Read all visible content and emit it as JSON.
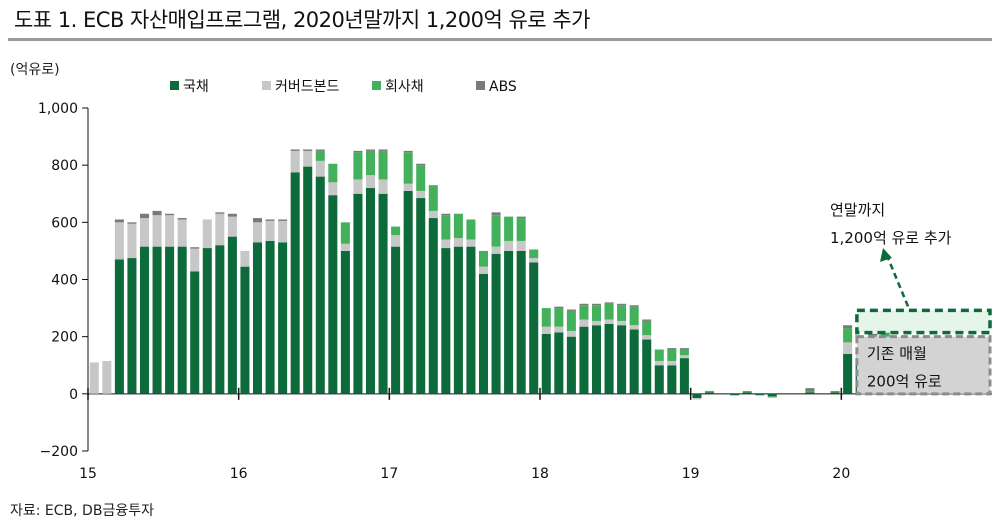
{
  "title": "도표 1. ECB 자산매입프로그램, 2020년말까지 1,200억 유로 추가",
  "source": "자료: ECB, DB금융투자",
  "chart_data": {
    "type": "bar",
    "stacked": true,
    "unit_label": "(억유로)",
    "ylim": [
      -200,
      1000
    ],
    "yticks": [
      -200,
      0,
      200,
      400,
      600,
      800,
      1000
    ],
    "ytick_labels": [
      "−200",
      "0",
      "200",
      "400",
      "600",
      "800",
      "1,000"
    ],
    "xticks": [
      "15",
      "16",
      "17",
      "18",
      "19",
      "20"
    ],
    "xlim_months": 72,
    "bar_start_index": 0,
    "legend_position": "top",
    "series": [
      {
        "name": "국채",
        "color": "#0d6a3a",
        "values": [
          0,
          0,
          470,
          475,
          515,
          515,
          515,
          515,
          428,
          510,
          520,
          550,
          445,
          530,
          535,
          530,
          775,
          795,
          760,
          695,
          500,
          700,
          720,
          700,
          515,
          710,
          685,
          615,
          510,
          515,
          515,
          420,
          490,
          500,
          500,
          460,
          210,
          215,
          200,
          235,
          240,
          245,
          240,
          225,
          190,
          100,
          100,
          125,
          -15,
          5,
          0,
          -5,
          5,
          -5,
          -10,
          0,
          0,
          5,
          0,
          5,
          140,
          125,
          125,
          140,
          0,
          0,
          0,
          0,
          0,
          0,
          0,
          0
        ]
      },
      {
        "name": "커버드본드",
        "color": "#c7c7c7",
        "values": [
          110,
          115,
          130,
          120,
          100,
          110,
          110,
          95,
          80,
          100,
          110,
          70,
          55,
          70,
          70,
          75,
          75,
          55,
          55,
          45,
          25,
          50,
          45,
          50,
          40,
          25,
          25,
          25,
          30,
          30,
          25,
          25,
          25,
          35,
          35,
          15,
          25,
          20,
          20,
          25,
          15,
          15,
          15,
          15,
          15,
          15,
          15,
          10,
          -5,
          0,
          0,
          0,
          0,
          0,
          -5,
          0,
          0,
          0,
          0,
          0,
          40,
          20,
          20,
          25,
          0,
          0,
          0,
          0,
          0,
          0,
          0,
          0
        ]
      },
      {
        "name": "회사채",
        "color": "#43b05c",
        "values": [
          0,
          0,
          0,
          0,
          0,
          0,
          0,
          0,
          0,
          0,
          0,
          0,
          0,
          0,
          0,
          0,
          0,
          0,
          35,
          65,
          75,
          95,
          85,
          100,
          30,
          110,
          90,
          90,
          85,
          85,
          70,
          55,
          110,
          85,
          80,
          30,
          65,
          65,
          70,
          50,
          55,
          55,
          55,
          65,
          50,
          40,
          40,
          20,
          0,
          5,
          0,
          0,
          5,
          0,
          0,
          0,
          0,
          5,
          0,
          5,
          50,
          10,
          60,
          65,
          0,
          0,
          0,
          0,
          0,
          0,
          0,
          0
        ]
      },
      {
        "name": "ABS",
        "color": "#7a7a7a",
        "values": [
          0,
          0,
          10,
          5,
          15,
          15,
          5,
          5,
          5,
          0,
          5,
          10,
          0,
          15,
          5,
          5,
          5,
          5,
          5,
          0,
          0,
          5,
          5,
          5,
          0,
          5,
          5,
          0,
          5,
          0,
          0,
          0,
          10,
          0,
          5,
          0,
          0,
          5,
          5,
          5,
          5,
          5,
          5,
          5,
          5,
          0,
          5,
          5,
          0,
          0,
          0,
          0,
          0,
          0,
          0,
          0,
          0,
          10,
          0,
          0,
          10,
          0,
          5,
          5,
          0,
          0,
          0,
          0,
          0,
          0,
          0,
          0
        ]
      }
    ],
    "annotations": {
      "added_box": {
        "label_line1": "연말까지",
        "label_line2": "1,200억 유로 추가",
        "value": 120
      },
      "existing_box": {
        "label_line1": "기존 매월",
        "label_line2": "200억 유로",
        "value": 200
      },
      "box_start_month": 61,
      "box_end_month": 72
    }
  }
}
